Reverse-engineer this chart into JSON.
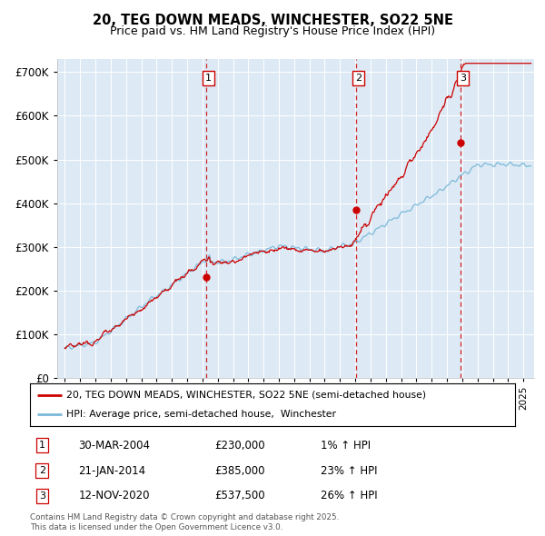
{
  "title": "20, TEG DOWN MEADS, WINCHESTER, SO22 5NE",
  "subtitle": "Price paid vs. HM Land Registry's House Price Index (HPI)",
  "ylim": [
    0,
    730000
  ],
  "yticks": [
    0,
    100000,
    200000,
    300000,
    400000,
    500000,
    600000,
    700000
  ],
  "ytick_labels": [
    "£0",
    "£100K",
    "£200K",
    "£300K",
    "£400K",
    "£500K",
    "£600K",
    "£700K"
  ],
  "hpi_color": "#7ab8d9",
  "price_color": "#cc0000",
  "bg_color": "#ddeaf5",
  "grid_color": "#ffffff",
  "sale_markers": [
    {
      "date_num": 2004.25,
      "price": 230000,
      "label": "1"
    },
    {
      "date_num": 2014.07,
      "price": 385000,
      "label": "2"
    },
    {
      "date_num": 2020.87,
      "price": 537500,
      "label": "3"
    }
  ],
  "legend_label_price": "20, TEG DOWN MEADS, WINCHESTER, SO22 5NE (semi-detached house)",
  "legend_label_hpi": "HPI: Average price, semi-detached house,  Winchester",
  "table_rows": [
    [
      "1",
      "30-MAR-2004",
      "£230,000",
      "1% ↑ HPI"
    ],
    [
      "2",
      "21-JAN-2014",
      "£385,000",
      "23% ↑ HPI"
    ],
    [
      "3",
      "12-NOV-2020",
      "£537,500",
      "26% ↑ HPI"
    ]
  ],
  "footer": "Contains HM Land Registry data © Crown copyright and database right 2025.\nThis data is licensed under the Open Government Licence v3.0.",
  "dashed_line_color": "#cc0000",
  "xlim_start": 1994.5,
  "xlim_end": 2025.7
}
